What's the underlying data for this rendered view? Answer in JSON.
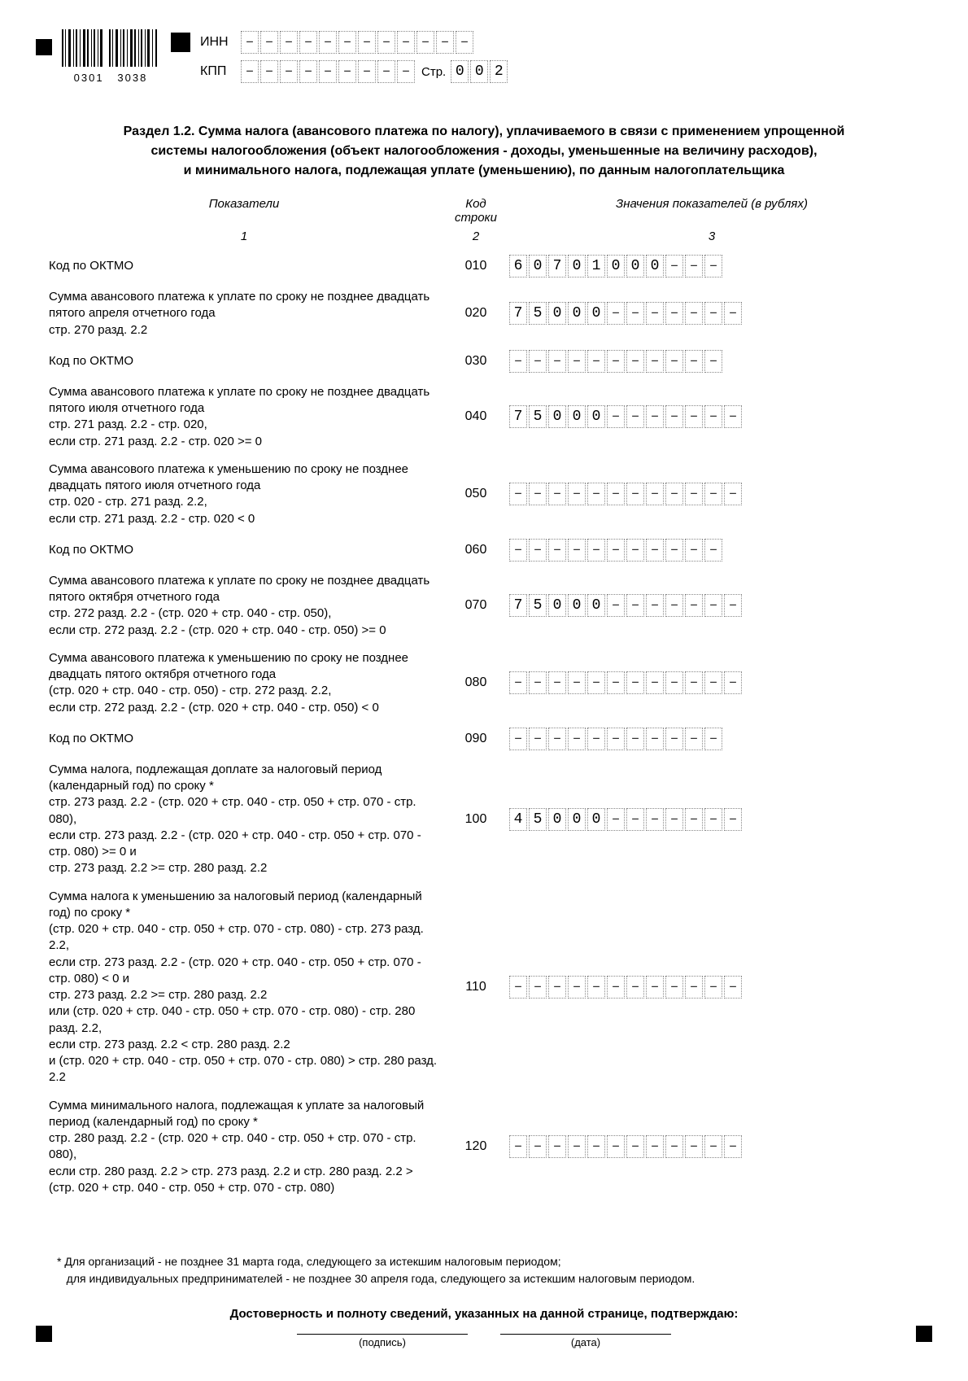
{
  "barcode_left": "0301",
  "barcode_right": "3038",
  "header": {
    "inn_label": "ИНН",
    "kpp_label": "КПП",
    "page_label": "Стр.",
    "inn_cells": 12,
    "kpp_cells": 9,
    "page_value": [
      "0",
      "0",
      "2"
    ]
  },
  "title_line1": "Раздел 1.2. Сумма налога (авансового платежа по налогу), уплачиваемого в связи с применением упрощенной",
  "title_line2": "системы налогообложения (объект налогообложения - доходы, уменьшенные на величину расходов),",
  "title_line3": "и минимального налога, подлежащая уплате (уменьшению), по данным налогоплательщика",
  "table_head": {
    "col1": "Показатели",
    "col2": "Код строки",
    "col3": "Значения показателей (в рублях)",
    "sub1": "1",
    "sub2": "2",
    "sub3": "3"
  },
  "rows": [
    {
      "desc": "Код по ОКТМО",
      "code": "010",
      "cells": 11,
      "value": [
        "6",
        "0",
        "7",
        "0",
        "1",
        "0",
        "0",
        "0"
      ]
    },
    {
      "desc": "Сумма авансового платежа к уплате по сроку не позднее двадцать пятого апреля отчетного года\nстр. 270 разд. 2.2",
      "code": "020",
      "cells": 12,
      "value": [
        "7",
        "5",
        "0",
        "0",
        "0"
      ]
    },
    {
      "desc": "Код по ОКТМО",
      "code": "030",
      "cells": 11,
      "value": []
    },
    {
      "desc": "Сумма авансового платежа к уплате по сроку не позднее двадцать пятого июля отчетного года\nстр. 271 разд. 2.2 - стр. 020,\nесли стр. 271 разд. 2.2 - стр. 020 >= 0",
      "code": "040",
      "cells": 12,
      "value": [
        "7",
        "5",
        "0",
        "0",
        "0"
      ]
    },
    {
      "desc": "Сумма авансового платежа к уменьшению по сроку не позднее двадцать пятого июля отчетного года\nстр. 020 - стр. 271 разд. 2.2,\nесли стр. 271 разд. 2.2 - стр. 020 < 0",
      "code": "050",
      "cells": 12,
      "value": []
    },
    {
      "desc": "Код по ОКТМО",
      "code": "060",
      "cells": 11,
      "value": []
    },
    {
      "desc": "Сумма авансового платежа к уплате по сроку не позднее двадцать пятого октября отчетного года\nстр. 272 разд. 2.2 - (стр. 020 + стр. 040 - стр. 050),\nесли стр. 272 разд. 2.2 - (стр. 020 + стр. 040 - стр. 050) >= 0",
      "code": "070",
      "cells": 12,
      "value": [
        "7",
        "5",
        "0",
        "0",
        "0"
      ]
    },
    {
      "desc": "Сумма авансового платежа к уменьшению по сроку не позднее двадцать пятого октября отчетного года\n(стр. 020 + стр. 040 - стр. 050) - стр. 272 разд. 2.2,\nесли стр. 272 разд. 2.2 - (стр. 020 + стр. 040 - стр. 050) < 0",
      "code": "080",
      "cells": 12,
      "value": []
    },
    {
      "desc": "Код по ОКТМО",
      "code": "090",
      "cells": 11,
      "value": []
    },
    {
      "desc": "Сумма налога, подлежащая доплате за налоговый период (календарный год) по сроку *\nстр. 273 разд. 2.2 - (стр. 020 + стр. 040 - стр. 050 + стр. 070 - стр. 080),\nесли стр. 273 разд. 2.2 - (стр. 020 + стр. 040 - стр. 050 +  стр. 070 - стр. 080) >= 0 и\nстр. 273 разд. 2.2 >= стр. 280 разд. 2.2",
      "code": "100",
      "cells": 12,
      "value": [
        "4",
        "5",
        "0",
        "0",
        "0"
      ]
    },
    {
      "desc": "Сумма налога к уменьшению за налоговый период (календарный год) по сроку *\n(стр. 020 + стр. 040 - стр. 050 + стр. 070 - стр. 080) - стр. 273 разд. 2.2,\nесли стр. 273 разд. 2.2 - (стр. 020 + стр. 040 - стр. 050 +  стр. 070 - стр. 080) < 0 и\nстр. 273 разд. 2.2 >= стр. 280 разд. 2.2\nили (стр. 020 + стр. 040 - стр. 050 + стр. 070 - стр. 080) - стр. 280 разд. 2.2,\nесли стр. 273 разд. 2.2 < стр. 280 разд. 2.2\nи (стр. 020 + стр. 040 - стр. 050 + стр. 070 - стр. 080) > стр. 280 разд. 2.2",
      "code": "110",
      "cells": 12,
      "value": []
    },
    {
      "desc": "Сумма минимального налога, подлежащая к уплате за налоговый период (календарный год) по сроку *\nстр. 280 разд. 2.2 - (стр. 020 + стр. 040 - стр. 050 + стр. 070 - стр. 080),\nесли стр. 280 разд. 2.2 > стр. 273 разд. 2.2 и стр. 280 разд. 2.2 > (стр. 020 + стр. 040 - стр. 050 + стр. 070 - стр. 080)",
      "code": "120",
      "cells": 12,
      "value": []
    }
  ],
  "footnote_line1": "*  Для организаций - не позднее 31 марта года, следующего за истекшим налоговым периодом;",
  "footnote_line2": "для индивидуальных предпринимателей - не позднее 30 апреля года, следующего за истекшим налоговым периодом.",
  "confirm_text": "Достоверность и полноту сведений, указанных на данной странице, подтверждаю:",
  "sig_label": "(подпись)",
  "date_label": "(дата)"
}
